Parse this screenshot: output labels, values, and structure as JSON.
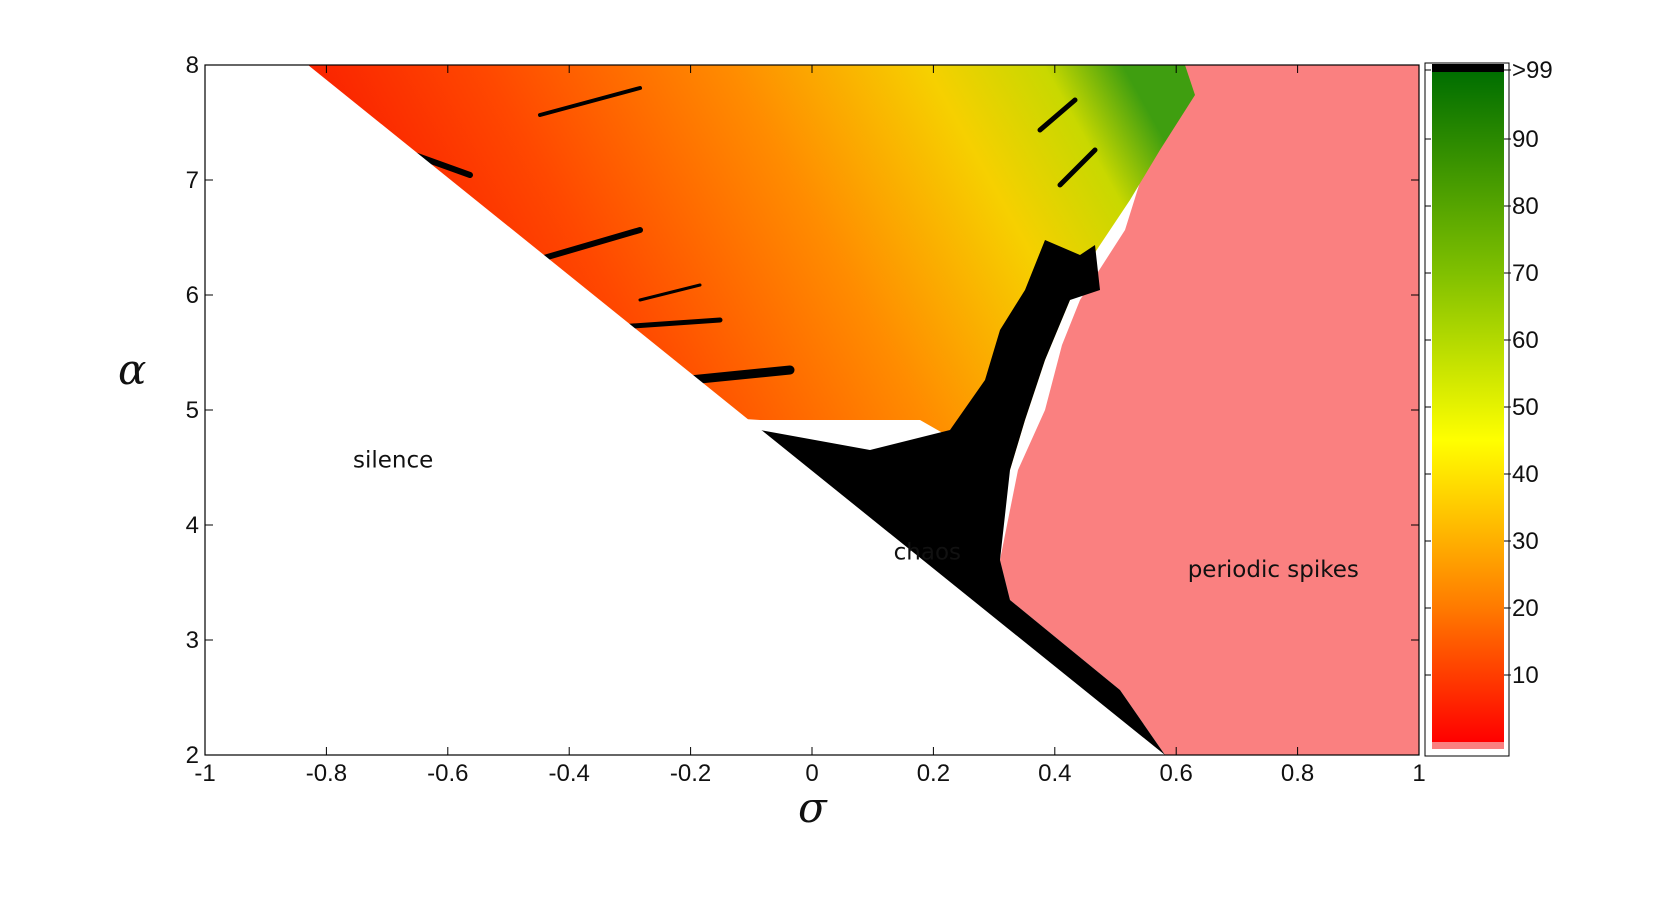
{
  "chart_data": {
    "type": "heatmap",
    "title": "",
    "xlabel": "σ",
    "ylabel": "α",
    "xlim": [
      -1,
      1
    ],
    "ylim": [
      2,
      8
    ],
    "x_ticks": [
      "-1",
      "-0.8",
      "-0.6",
      "-0.4",
      "-0.2",
      "0",
      "0.2",
      "0.4",
      "0.6",
      "0.8",
      "1"
    ],
    "y_ticks": [
      "2",
      "3",
      "4",
      "5",
      "6",
      "7",
      "8"
    ],
    "regions": [
      {
        "label": "silence",
        "color": "#ffffff",
        "x": -0.69,
        "y": 4.5
      },
      {
        "label": "chaos",
        "color": "#000000",
        "x": 0.19,
        "y": 3.7
      },
      {
        "label": "periodic spikes",
        "color": "#fa8080",
        "x": 0.76,
        "y": 3.55
      }
    ],
    "boundaries": {
      "silence_edge": [
        [
          -0.83,
          8
        ],
        [
          0.58,
          2
        ]
      ],
      "periodic_edge": [
        [
          0.58,
          2
        ],
        [
          0.33,
          3.2
        ],
        [
          0.32,
          4.0
        ],
        [
          0.36,
          4.8
        ],
        [
          0.4,
          5.5
        ],
        [
          0.43,
          6.2
        ],
        [
          0.47,
          6.6
        ],
        [
          0.52,
          7.2
        ],
        [
          0.56,
          7.6
        ],
        [
          0.62,
          8
        ]
      ]
    },
    "colorbar": {
      "ticks": [
        "10",
        "20",
        "30",
        "40",
        "50",
        "60",
        "70",
        "80",
        "90",
        ">99"
      ],
      "range": [
        0,
        100
      ],
      "colors": [
        "#ff0000",
        "#ff7a00",
        "#ffff00",
        "#80c000",
        "#006e00",
        "#000000"
      ]
    }
  }
}
